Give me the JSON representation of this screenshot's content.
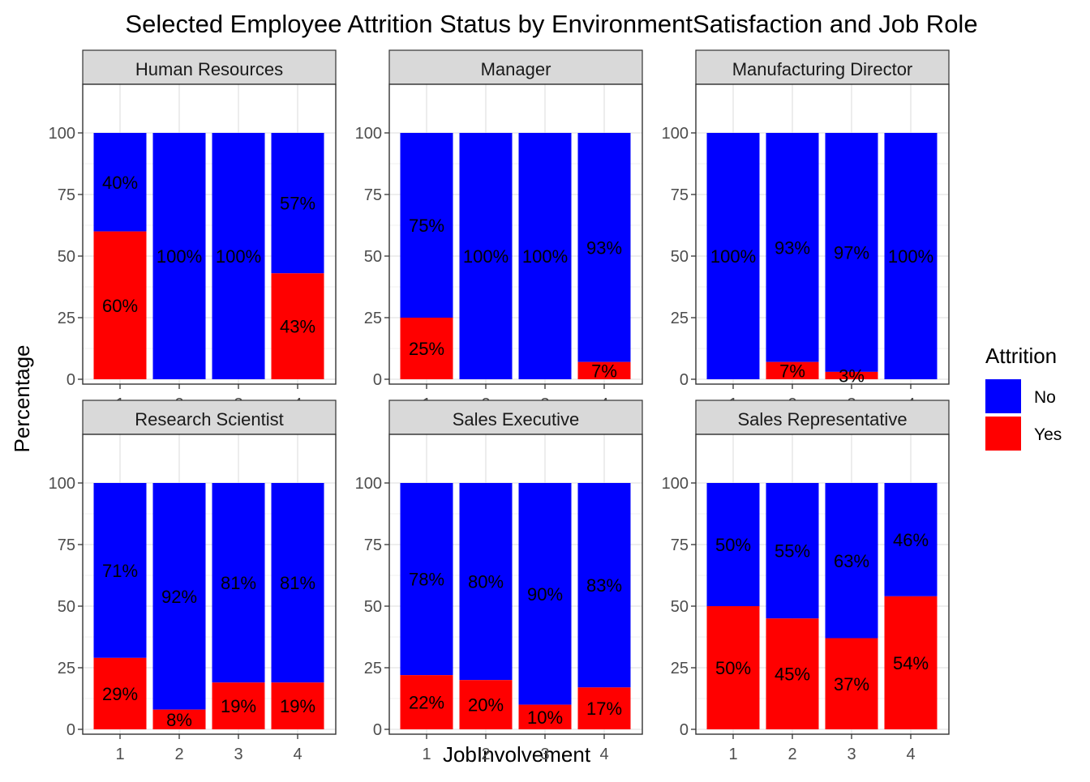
{
  "chart_data": {
    "type": "bar",
    "stacked": true,
    "facet_by": "Job Role",
    "title": "Selected Employee Attrition Status by EnvironmentSatisfaction and Job Role",
    "xlabel": "JobInvolvement",
    "ylabel": "Percentage",
    "ylim": [
      0,
      100
    ],
    "yticks": [
      0,
      25,
      50,
      75,
      100
    ],
    "categories": [
      "1",
      "2",
      "3",
      "4"
    ],
    "grid": true,
    "legend": {
      "title": "Attrition",
      "position": "right",
      "entries": [
        {
          "name": "No",
          "color": "#0000ff"
        },
        {
          "name": "Yes",
          "color": "#ff0000"
        }
      ]
    },
    "panels": [
      {
        "name": "Human Resources",
        "series": [
          {
            "name": "No",
            "values": [
              40,
              100,
              100,
              57
            ],
            "labels": [
              "40%",
              "100%",
              "100%",
              "57%"
            ]
          },
          {
            "name": "Yes",
            "values": [
              60,
              0,
              0,
              43
            ],
            "labels": [
              "60%",
              "",
              "",
              "43%"
            ]
          }
        ]
      },
      {
        "name": "Manager",
        "series": [
          {
            "name": "No",
            "values": [
              75,
              100,
              100,
              93
            ],
            "labels": [
              "75%",
              "100%",
              "100%",
              "93%"
            ]
          },
          {
            "name": "Yes",
            "values": [
              25,
              0,
              0,
              7
            ],
            "labels": [
              "25%",
              "",
              "",
              "7%"
            ]
          }
        ]
      },
      {
        "name": "Manufacturing Director",
        "series": [
          {
            "name": "No",
            "values": [
              100,
              93,
              97,
              100
            ],
            "labels": [
              "100%",
              "93%",
              "97%",
              "100%"
            ]
          },
          {
            "name": "Yes",
            "values": [
              0,
              7,
              3,
              0
            ],
            "labels": [
              "",
              "7%",
              "3%",
              ""
            ]
          }
        ]
      },
      {
        "name": "Research Scientist",
        "series": [
          {
            "name": "No",
            "values": [
              71,
              92,
              81,
              81
            ],
            "labels": [
              "71%",
              "92%",
              "81%",
              "81%"
            ]
          },
          {
            "name": "Yes",
            "values": [
              29,
              8,
              19,
              19
            ],
            "labels": [
              "29%",
              "8%",
              "19%",
              "19%"
            ]
          }
        ]
      },
      {
        "name": "Sales Executive",
        "series": [
          {
            "name": "No",
            "values": [
              78,
              80,
              90,
              83
            ],
            "labels": [
              "78%",
              "80%",
              "90%",
              "83%"
            ]
          },
          {
            "name": "Yes",
            "values": [
              22,
              20,
              10,
              17
            ],
            "labels": [
              "22%",
              "20%",
              "10%",
              "17%"
            ]
          }
        ]
      },
      {
        "name": "Sales Representative",
        "series": [
          {
            "name": "No",
            "values": [
              50,
              55,
              63,
              46
            ],
            "labels": [
              "50%",
              "55%",
              "63%",
              "46%"
            ]
          },
          {
            "name": "Yes",
            "values": [
              50,
              45,
              37,
              54
            ],
            "labels": [
              "50%",
              "45%",
              "37%",
              "54%"
            ]
          }
        ]
      }
    ]
  }
}
